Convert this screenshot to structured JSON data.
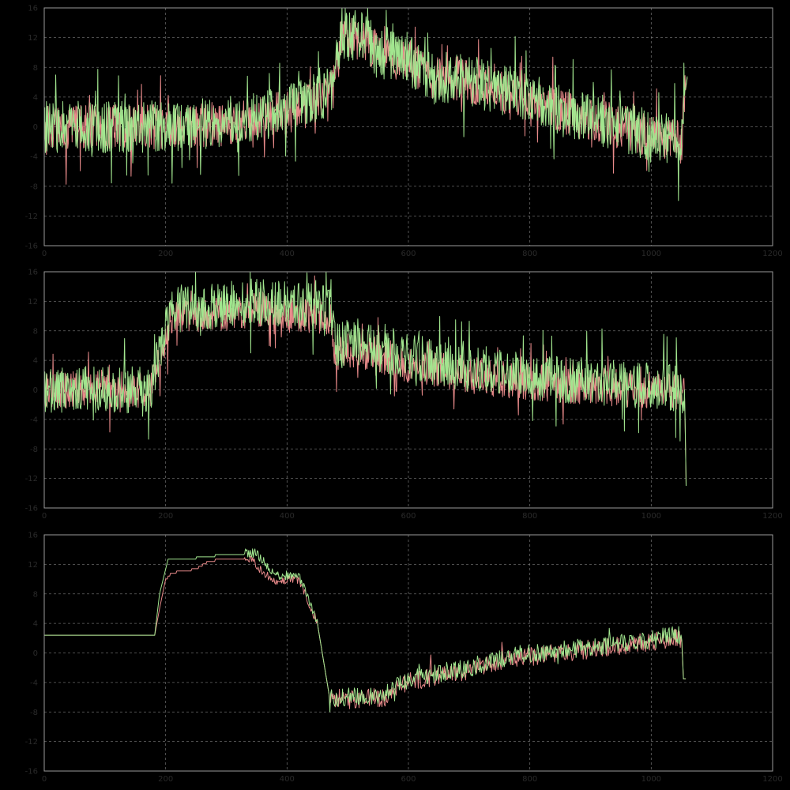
{
  "chart_data": [
    {
      "type": "line",
      "xlim": [
        0,
        1200
      ],
      "ylim": [
        -16,
        16
      ],
      "xticks": [
        0,
        200,
        400,
        600,
        800,
        1000,
        1200
      ],
      "yticks": [
        -16,
        -12,
        -8,
        -4,
        0,
        4,
        8,
        12,
        16
      ],
      "grid": true,
      "style": "noisy",
      "series": [
        {
          "color": "#e88a8a",
          "base": [
            [
              0,
              0
            ],
            [
              180,
              0
            ],
            [
              300,
              0.4
            ],
            [
              400,
              2
            ],
            [
              450,
              4
            ],
            [
              475,
              5
            ],
            [
              490,
              12
            ],
            [
              520,
              12
            ],
            [
              550,
              10
            ],
            [
              600,
              9
            ],
            [
              640,
              6
            ],
            [
              680,
              6.5
            ],
            [
              740,
              5
            ],
            [
              800,
              4
            ],
            [
              850,
              2
            ],
            [
              900,
              1
            ],
            [
              950,
              0
            ],
            [
              1000,
              -1.5
            ],
            [
              1040,
              -2
            ],
            [
              1050,
              -2.5
            ],
            [
              1055,
              4
            ],
            [
              1060,
              7
            ]
          ],
          "amp": 3
        },
        {
          "color": "#a2e68f",
          "base": [
            [
              0,
              0
            ],
            [
              180,
              0
            ],
            [
              300,
              0.5
            ],
            [
              400,
              2.3
            ],
            [
              450,
              4.2
            ],
            [
              475,
              5.2
            ],
            [
              490,
              12.5
            ],
            [
              520,
              12.2
            ],
            [
              550,
              10.2
            ],
            [
              600,
              9.2
            ],
            [
              640,
              6.2
            ],
            [
              680,
              6.8
            ],
            [
              740,
              5.2
            ],
            [
              800,
              4.2
            ],
            [
              850,
              2.2
            ],
            [
              900,
              1.2
            ],
            [
              950,
              0.2
            ],
            [
              1000,
              -1.3
            ],
            [
              1040,
              -1.8
            ],
            [
              1050,
              -2.3
            ],
            [
              1055,
              4.2
            ],
            [
              1060,
              7.2
            ]
          ],
          "amp": 3.5
        }
      ]
    },
    {
      "type": "line",
      "xlim": [
        0,
        1200
      ],
      "ylim": [
        -16,
        16
      ],
      "xticks": [
        0,
        200,
        400,
        600,
        800,
        1000,
        1200
      ],
      "yticks": [
        -16,
        -12,
        -8,
        -4,
        0,
        4,
        8,
        12,
        16
      ],
      "grid": true,
      "style": "noisy",
      "series": [
        {
          "color": "#e88a8a",
          "base": [
            [
              0,
              0
            ],
            [
              175,
              0
            ],
            [
              195,
              6
            ],
            [
              215,
              10
            ],
            [
              300,
              10.5
            ],
            [
              350,
              11
            ],
            [
              400,
              10.5
            ],
            [
              470,
              10
            ],
            [
              480,
              5
            ],
            [
              520,
              5.5
            ],
            [
              560,
              4.5
            ],
            [
              600,
              3.5
            ],
            [
              700,
              2
            ],
            [
              800,
              1
            ],
            [
              900,
              0.5
            ],
            [
              1000,
              0
            ],
            [
              1055,
              -0.5
            ],
            [
              1057,
              -10
            ],
            [
              1058,
              -16
            ]
          ],
          "amp": 2.5
        },
        {
          "color": "#a2e68f",
          "base": [
            [
              0,
              0
            ],
            [
              175,
              0
            ],
            [
              195,
              7
            ],
            [
              215,
              11
            ],
            [
              300,
              11.5
            ],
            [
              350,
              12
            ],
            [
              400,
              11.5
            ],
            [
              470,
              11
            ],
            [
              480,
              6
            ],
            [
              520,
              6.5
            ],
            [
              560,
              5.5
            ],
            [
              600,
              4.5
            ],
            [
              700,
              2.8
            ],
            [
              800,
              1.8
            ],
            [
              900,
              1.2
            ],
            [
              1000,
              0.5
            ],
            [
              1055,
              0
            ],
            [
              1057,
              -10
            ],
            [
              1058,
              -16
            ]
          ],
          "amp": 3.2
        }
      ]
    },
    {
      "type": "line",
      "xlim": [
        0,
        1200
      ],
      "ylim": [
        -16,
        16
      ],
      "xticks": [
        0,
        200,
        400,
        600,
        800,
        1000,
        1200
      ],
      "yticks": [
        -16,
        -12,
        -8,
        -4,
        0,
        4,
        8,
        12,
        16
      ],
      "grid": true,
      "style": "stepped",
      "series": [
        {
          "color": "#e88a8a",
          "base": [
            [
              0,
              2.4
            ],
            [
              182,
              2.4
            ],
            [
              190,
              6
            ],
            [
              200,
              10
            ],
            [
              210,
              11
            ],
            [
              250,
              11.5
            ],
            [
              270,
              12.5
            ],
            [
              300,
              13
            ],
            [
              330,
              13
            ],
            [
              350,
              12
            ],
            [
              360,
              11
            ],
            [
              380,
              9.5
            ],
            [
              400,
              10
            ],
            [
              420,
              10
            ],
            [
              450,
              4
            ],
            [
              470,
              -6
            ],
            [
              500,
              -6.4
            ],
            [
              560,
              -6
            ],
            [
              600,
              -4
            ],
            [
              650,
              -3
            ],
            [
              700,
              -2.5
            ],
            [
              750,
              -1
            ],
            [
              800,
              -0.5
            ],
            [
              850,
              0
            ],
            [
              900,
              0.5
            ],
            [
              1000,
              1.5
            ],
            [
              1040,
              2
            ],
            [
              1050,
              2
            ],
            [
              1053,
              -3.5
            ],
            [
              1057,
              -3.5
            ],
            [
              1058,
              -16
            ]
          ],
          "amp": 1.3
        },
        {
          "color": "#a2e68f",
          "base": [
            [
              0,
              2.4
            ],
            [
              182,
              2.4
            ],
            [
              190,
              8
            ],
            [
              205,
              13
            ],
            [
              250,
              13
            ],
            [
              300,
              13.5
            ],
            [
              350,
              13.5
            ],
            [
              360,
              12.5
            ],
            [
              380,
              10.5
            ],
            [
              400,
              10.5
            ],
            [
              420,
              10.5
            ],
            [
              450,
              4
            ],
            [
              470,
              -6
            ],
            [
              500,
              -6
            ],
            [
              560,
              -5.5
            ],
            [
              600,
              -3.5
            ],
            [
              650,
              -2.7
            ],
            [
              700,
              -2
            ],
            [
              750,
              -0.7
            ],
            [
              800,
              0
            ],
            [
              850,
              0.3
            ],
            [
              900,
              0.8
            ],
            [
              1000,
              1.8
            ],
            [
              1040,
              2.5
            ],
            [
              1050,
              2.5
            ],
            [
              1053,
              -3.5
            ],
            [
              1057,
              -3.5
            ],
            [
              1058,
              -16
            ]
          ],
          "amp": 1.3
        }
      ]
    }
  ]
}
